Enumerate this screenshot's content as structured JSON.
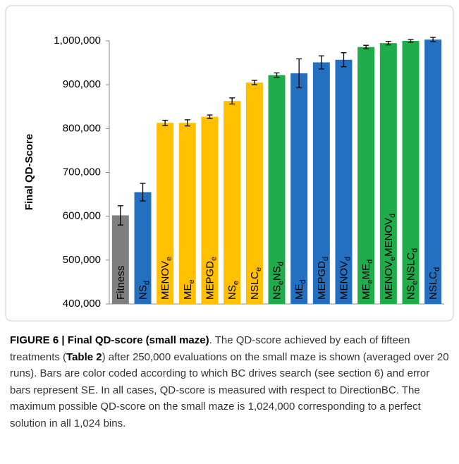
{
  "chart_data": {
    "type": "bar",
    "ylabel": "Final QD-Score",
    "categories": [
      [
        "Fitness"
      ],
      [
        "NS",
        "d"
      ],
      [
        "MENOV",
        "e"
      ],
      [
        "ME",
        "e"
      ],
      [
        "MEPGD",
        "e"
      ],
      [
        "NS",
        "e"
      ],
      [
        "NSLC",
        "e"
      ],
      [
        "NS",
        "e",
        "NS",
        "d"
      ],
      [
        "ME",
        "d"
      ],
      [
        "MEPGD",
        "d"
      ],
      [
        "MENOV",
        "d"
      ],
      [
        "ME",
        "e",
        "ME",
        "d"
      ],
      [
        "MENOV",
        "e",
        "MENOV",
        "d"
      ],
      [
        "NS",
        "e",
        "NSLC",
        "d"
      ],
      [
        "NSLC",
        "d"
      ]
    ],
    "values": [
      602000,
      655000,
      813000,
      813000,
      827000,
      863000,
      905000,
      922000,
      926000,
      951000,
      957000,
      986000,
      995000,
      1000000,
      1003000
    ],
    "errors": [
      22000,
      20000,
      6000,
      7000,
      4000,
      7000,
      5000,
      5000,
      33000,
      15000,
      16000,
      4000,
      4000,
      3000,
      5000
    ],
    "colors": [
      "#7f7f7f",
      "#2470c0",
      "#ffc000",
      "#ffc000",
      "#ffc000",
      "#ffc000",
      "#ffc000",
      "#1fad4b",
      "#2470c0",
      "#2470c0",
      "#2470c0",
      "#1fad4b",
      "#1fad4b",
      "#1fad4b",
      "#2470c0"
    ],
    "ylim": [
      400000,
      1000000
    ],
    "yticks": [
      {
        "value": 400000,
        "label": "400,000"
      },
      {
        "value": 500000,
        "label": "500,000"
      },
      {
        "value": 600000,
        "label": "600,000"
      },
      {
        "value": 700000,
        "label": "700,000"
      },
      {
        "value": 800000,
        "label": "800,000"
      },
      {
        "value": 900000,
        "label": "900,000"
      },
      {
        "value": 1000000,
        "label": "1,000,000"
      }
    ],
    "grid": false
  },
  "caption": [
    {
      "text": "FIGURE 6 | ",
      "bold": true
    },
    {
      "text": "Final QD-score (small maze)",
      "bold": true
    },
    {
      "text": ". The QD-score achieved by each of fifteen treatments (",
      "bold": false
    },
    {
      "text": "Table 2",
      "bold": true
    },
    {
      "text": ") after 250,000 evaluations on the small maze is shown (averaged over 20 runs). Bars are color coded according to which BC drives search (see section 6) and error bars represent SE. In all cases, QD-score is measured with respect to DirectionBC. The maximum possible QD-score on the small maze is 1,024,000 corresponding to a perfect solution in all 1,024 bins.",
      "bold": false
    }
  ]
}
